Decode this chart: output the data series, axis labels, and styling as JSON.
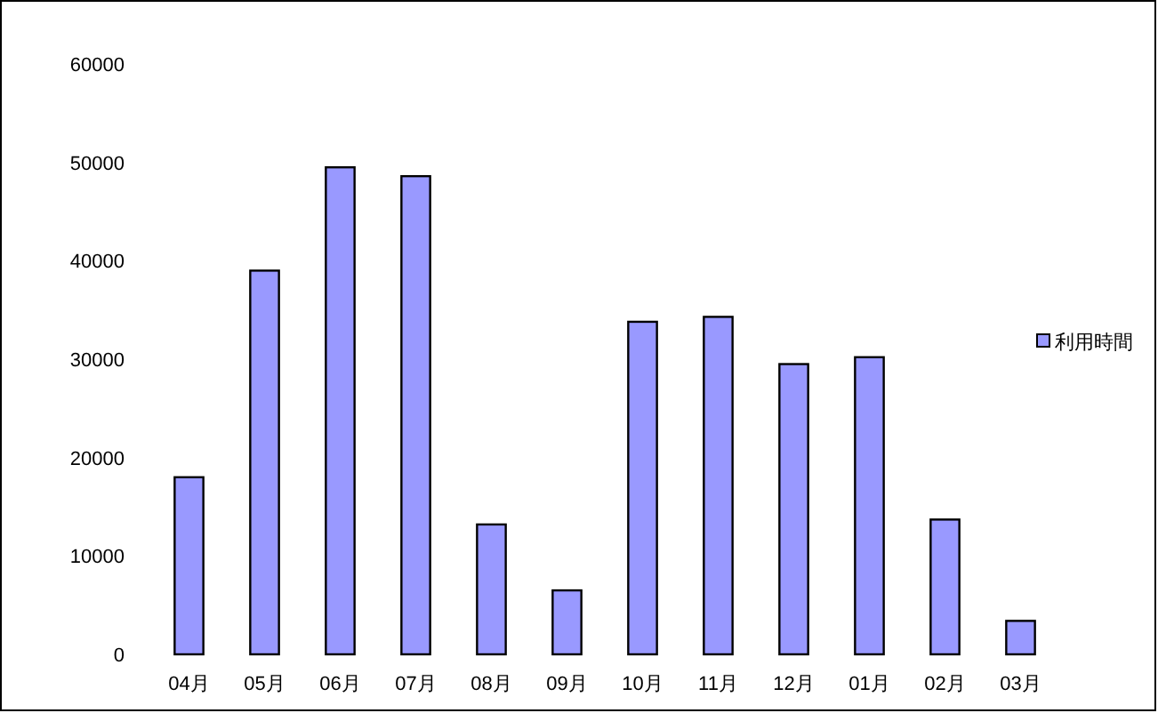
{
  "chart_data": {
    "type": "bar",
    "categories": [
      "04月",
      "05月",
      "06月",
      "07月",
      "08月",
      "09月",
      "10月",
      "11月",
      "12月",
      "01月",
      "02月",
      "03月"
    ],
    "series": [
      {
        "name": "利用時間",
        "color": "#9999ff",
        "values": [
          18000,
          39000,
          49500,
          48600,
          13200,
          6500,
          33800,
          34300,
          29500,
          30200,
          13700,
          3400
        ]
      }
    ],
    "ylim": [
      0,
      60000
    ],
    "yticks": [
      0,
      10000,
      20000,
      30000,
      40000,
      50000,
      60000
    ],
    "grid": false,
    "legend": "right"
  }
}
